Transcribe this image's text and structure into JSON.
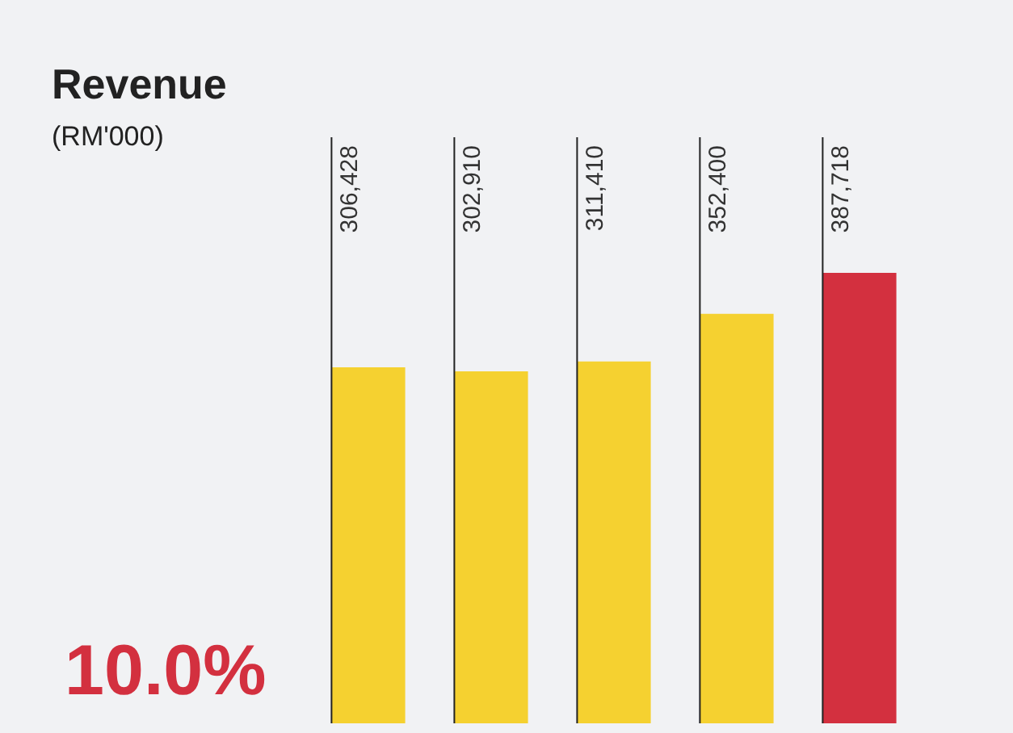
{
  "chart_data": {
    "type": "bar",
    "title": "Revenue",
    "subtitle": "(RM'000)",
    "categories": [
      null,
      null,
      null,
      null,
      null
    ],
    "values": [
      306428,
      302910,
      311410,
      352400,
      387718
    ],
    "colors": [
      "#f5d130",
      "#f5d130",
      "#f5d130",
      "#f5d130",
      "#d3303f"
    ],
    "value_labels": [
      "306,428",
      "302,910",
      "311,410",
      "352,400",
      "387,718"
    ],
    "annotations": [
      "10.0%"
    ]
  }
}
